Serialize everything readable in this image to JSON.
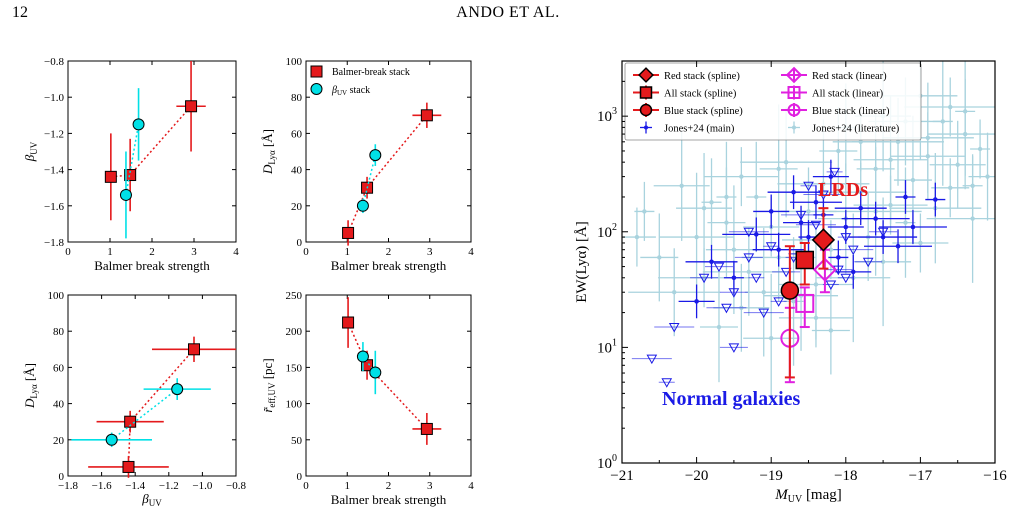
{
  "page": {
    "number": "12",
    "running_head": "ANDO ET AL."
  },
  "colors": {
    "red": "#e41a1c",
    "cyan": "#00e0e6",
    "magenta": "#e020e0",
    "blue": "#1a1ae6",
    "lightblue": "#a9d3de"
  },
  "chart_data": [
    {
      "id": "a",
      "type": "scatter",
      "xlabel": "Balmer break strength",
      "ylabel": "βUV",
      "xlim": [
        0,
        4
      ],
      "ylim": [
        -1.8,
        -0.8
      ],
      "xticks": [
        "0",
        "1",
        "2",
        "3",
        "4"
      ],
      "yticks": [
        "−1.8",
        "−1.6",
        "−1.4",
        "−1.2",
        "−1.0",
        "−0.8"
      ],
      "series": [
        {
          "marker": "square",
          "color": "red",
          "connect": true,
          "x": [
            1.02,
            1.48,
            2.93
          ],
          "y": [
            -1.44,
            -1.43,
            -1.05
          ],
          "xerr": [
            0.0,
            0.0,
            0.35
          ],
          "yerr": [
            0.24,
            0.2,
            0.25
          ]
        },
        {
          "marker": "circle",
          "color": "cyan",
          "connect": true,
          "x": [
            1.38,
            1.68
          ],
          "y": [
            -1.54,
            -1.15
          ],
          "xerr": [
            0.0,
            0.0
          ],
          "yerr": [
            0.24,
            0.2
          ]
        }
      ]
    },
    {
      "id": "b",
      "type": "scatter",
      "xlabel": "Balmer break strength",
      "ylabel": "DLyα [Å]",
      "xlim": [
        0,
        4
      ],
      "ylim": [
        0,
        100
      ],
      "xticks": [
        "0",
        "1",
        "2",
        "3",
        "4"
      ],
      "yticks": [
        "0",
        "20",
        "40",
        "60",
        "80",
        "100"
      ],
      "legend": [
        "Balmer-break stack",
        "βUV stack"
      ],
      "series": [
        {
          "marker": "square",
          "color": "red",
          "connect": true,
          "x": [
            1.02,
            1.48,
            2.93
          ],
          "y": [
            5,
            30,
            70
          ],
          "xerr": [
            0.0,
            0.0,
            0.35
          ],
          "yerr": [
            7,
            6,
            7
          ]
        },
        {
          "marker": "circle",
          "color": "cyan",
          "connect": true,
          "x": [
            1.38,
            1.68
          ],
          "y": [
            20,
            48
          ],
          "xerr": [
            0.0,
            0.0
          ],
          "yerr": [
            4,
            6
          ]
        }
      ]
    },
    {
      "id": "c",
      "type": "scatter",
      "xlabel": "βUV",
      "ylabel": "DLyα [Å]",
      "xlim": [
        -1.8,
        -0.8
      ],
      "ylim": [
        0,
        100
      ],
      "xticks": [
        "−1.8",
        "−1.6",
        "−1.4",
        "−1.2",
        "−1.0",
        "−0.8"
      ],
      "yticks": [
        "0",
        "20",
        "40",
        "60",
        "80",
        "100"
      ],
      "series": [
        {
          "marker": "square",
          "color": "red",
          "connect": true,
          "x": [
            -1.44,
            -1.43,
            -1.05
          ],
          "y": [
            5,
            30,
            70
          ],
          "xerr": [
            0.24,
            0.2,
            0.25
          ],
          "yerr": [
            6,
            6,
            7
          ]
        },
        {
          "marker": "circle",
          "color": "cyan",
          "connect": true,
          "x": [
            -1.54,
            -1.15
          ],
          "y": [
            20,
            48
          ],
          "xerr": [
            0.24,
            0.2
          ],
          "yerr": [
            4,
            6
          ]
        }
      ]
    },
    {
      "id": "d",
      "type": "scatter",
      "xlabel": "Balmer break strength",
      "ylabel": "r̃eff,UV [pc]",
      "xlim": [
        0,
        4
      ],
      "ylim": [
        0,
        250
      ],
      "xticks": [
        "0",
        "1",
        "2",
        "3",
        "4"
      ],
      "yticks": [
        "0",
        "50",
        "100",
        "150",
        "200",
        "250"
      ],
      "series": [
        {
          "marker": "square",
          "color": "red",
          "connect": true,
          "x": [
            1.02,
            1.48,
            2.93
          ],
          "y": [
            212,
            153,
            65
          ],
          "xerr": [
            0.0,
            0.0,
            0.35
          ],
          "yerr": [
            35,
            20,
            22
          ]
        },
        {
          "marker": "circle",
          "color": "cyan",
          "connect": true,
          "x": [
            1.38,
            1.68
          ],
          "y": [
            165,
            143
          ],
          "xerr": [
            0.0,
            0.0
          ],
          "yerr": [
            20,
            30
          ]
        }
      ]
    },
    {
      "id": "e",
      "type": "scatter",
      "xlabel": "MUV [mag]",
      "ylabel": "EW(Lyα) [Å]",
      "xlim": [
        -21,
        -16
      ],
      "ylim": [
        1,
        3000
      ],
      "yscale": "log",
      "xticks": [
        "−21",
        "−20",
        "−19",
        "−18",
        "−17",
        "−16"
      ],
      "yticks": [
        {
          "v": 1,
          "label": "10",
          "exp": "0"
        },
        {
          "v": 10,
          "label": "10",
          "exp": "1"
        },
        {
          "v": 100,
          "label": "10",
          "exp": "2"
        },
        {
          "v": 1000,
          "label": "10",
          "exp": "3"
        }
      ],
      "legend": [
        "Red stack (spline)",
        "All stack (spline)",
        "Blue stack (spline)",
        "Jones+24 (main)",
        "Red stack (linear)",
        "All stack (linear)",
        "Blue stack (linear)",
        "Jones+24 (literature)"
      ],
      "annotations": [
        "LRDs",
        "Normal galaxies"
      ],
      "stacks": [
        {
          "name": "Red stack (spline)",
          "marker": "diamond",
          "color": "red",
          "filled": true,
          "x": -18.3,
          "y": 85,
          "ylo": 48,
          "yhi": 160
        },
        {
          "name": "All stack (spline)",
          "marker": "square",
          "color": "red",
          "filled": true,
          "x": -18.55,
          "y": 57,
          "ylo": 35,
          "yhi": 80
        },
        {
          "name": "Blue stack (spline)",
          "marker": "circle",
          "color": "red",
          "filled": true,
          "x": -18.75,
          "y": 31,
          "ylo": 5.5,
          "yhi": 75
        },
        {
          "name": "Red stack (linear)",
          "marker": "diamond",
          "color": "magenta",
          "filled": false,
          "x": -18.28,
          "y": 47,
          "ylo": 30,
          "yhi": 70
        },
        {
          "name": "All stack (linear)",
          "marker": "square",
          "color": "magenta",
          "filled": false,
          "x": -18.55,
          "y": 24,
          "ylo": 15,
          "yhi": 33
        },
        {
          "name": "Blue stack (linear)",
          "marker": "circle",
          "color": "magenta",
          "filled": false,
          "x": -18.75,
          "y": 12,
          "ylo": 5,
          "yhi": 22
        }
      ],
      "jones_main": [
        [
          -18.3,
          140
        ],
        [
          -18.0,
          110
        ],
        [
          -17.8,
          160
        ],
        [
          -17.5,
          90
        ],
        [
          -17.2,
          200
        ],
        [
          -18.6,
          120
        ],
        [
          -18.9,
          70
        ],
        [
          -19.2,
          95
        ],
        [
          -18.1,
          60
        ],
        [
          -17.9,
          45
        ],
        [
          -18.4,
          180
        ],
        [
          -17.6,
          130
        ],
        [
          -19.5,
          40
        ],
        [
          -20.0,
          25
        ],
        [
          -18.7,
          220
        ],
        [
          -17.3,
          75
        ],
        [
          -16.8,
          190
        ],
        [
          -18.2,
          300
        ],
        [
          -19.8,
          55
        ],
        [
          -17.1,
          110
        ],
        [
          -18.5,
          90
        ],
        [
          -19.0,
          150
        ]
      ],
      "jones_main_upper": [
        [
          -19.0,
          75
        ],
        [
          -19.3,
          60
        ],
        [
          -18.4,
          115
        ],
        [
          -18.0,
          90
        ],
        [
          -19.7,
          50
        ],
        [
          -20.3,
          15
        ],
        [
          -20.4,
          5
        ],
        [
          -19.5,
          30
        ],
        [
          -19.1,
          20
        ],
        [
          -18.2,
          35
        ],
        [
          -18.8,
          45
        ],
        [
          -17.9,
          70
        ],
        [
          -18.5,
          250
        ],
        [
          -19.9,
          40
        ],
        [
          -18.6,
          140
        ],
        [
          -18.15,
          330
        ],
        [
          -17.5,
          100
        ],
        [
          -19.3,
          100
        ],
        [
          -18.0,
          40
        ],
        [
          -19.5,
          10
        ],
        [
          -20.6,
          8
        ],
        [
          -18.9,
          25
        ],
        [
          -17.7,
          55
        ],
        [
          -18.3,
          210
        ],
        [
          -19.2,
          40
        ],
        [
          -18.1,
          47
        ],
        [
          -19.6,
          22
        ],
        [
          -18.7,
          60
        ]
      ],
      "jones_literature": [
        [
          -20.7,
          150
        ],
        [
          -20.5,
          60
        ],
        [
          -20.2,
          250
        ],
        [
          -20.0,
          90
        ],
        [
          -19.9,
          40
        ],
        [
          -19.8,
          180
        ],
        [
          -19.6,
          120
        ],
        [
          -19.5,
          70
        ],
        [
          -19.4,
          300
        ],
        [
          -19.3,
          45
        ],
        [
          -19.2,
          200
        ],
        [
          -19.1,
          30
        ],
        [
          -19.0,
          110
        ],
        [
          -18.9,
          60
        ],
        [
          -18.8,
          400
        ],
        [
          -18.7,
          25
        ],
        [
          -18.6,
          85
        ],
        [
          -18.5,
          150
        ],
        [
          -18.4,
          35
        ],
        [
          -18.3,
          260
        ],
        [
          -18.2,
          70
        ],
        [
          -18.1,
          500
        ],
        [
          -18.0,
          130
        ],
        [
          -17.9,
          40
        ],
        [
          -17.8,
          220
        ],
        [
          -17.7,
          90
        ],
        [
          -17.6,
          350
        ],
        [
          -17.5,
          55
        ],
        [
          -17.4,
          170
        ],
        [
          -17.3,
          600
        ],
        [
          -17.2,
          120
        ],
        [
          -17.1,
          280
        ],
        [
          -17.0,
          80
        ],
        [
          -16.9,
          450
        ],
        [
          -16.8,
          160
        ],
        [
          -16.7,
          900
        ],
        [
          -16.6,
          240
        ],
        [
          -16.5,
          380
        ],
        [
          -16.4,
          700
        ],
        [
          -16.3,
          130
        ],
        [
          -16.2,
          520
        ],
        [
          -16.1,
          300
        ],
        [
          -17.5,
          1000
        ],
        [
          -17.0,
          1500
        ],
        [
          -16.6,
          1200
        ],
        [
          -18.0,
          800
        ],
        [
          -19.7,
          15
        ],
        [
          -19.0,
          12
        ],
        [
          -18.4,
          18
        ],
        [
          -20.3,
          30
        ],
        [
          -19.6,
          200
        ],
        [
          -18.9,
          350
        ],
        [
          -17.8,
          600
        ],
        [
          -17.2,
          900
        ],
        [
          -16.9,
          650
        ],
        [
          -16.4,
          1100
        ],
        [
          -20.8,
          90
        ],
        [
          -19.4,
          22
        ],
        [
          -18.6,
          28
        ],
        [
          -17.6,
          150
        ],
        [
          -16.3,
          250
        ],
        [
          -18.2,
          14
        ],
        [
          -19.9,
          160
        ],
        [
          -17.4,
          420
        ]
      ]
    }
  ]
}
